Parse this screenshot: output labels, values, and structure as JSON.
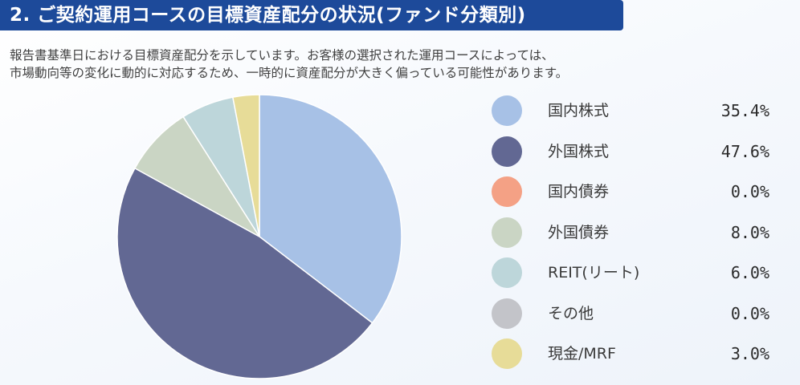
{
  "header": {
    "title": "2. ご契約運用コースの目標資産配分の状況(ファンド分類別)"
  },
  "description": {
    "line1": "報告書基準日における目標資産配分を示しています。お客様の選択された運用コースによっては、",
    "line2": "市場動向等の変化に動的に対応するため、一時的に資産配分が大きく偏っている可能性があります。"
  },
  "chart_data": {
    "type": "pie",
    "title": "",
    "categories": [
      "国内株式",
      "外国株式",
      "国内債券",
      "外国債券",
      "REIT(リート)",
      "その他",
      "現金/MRF"
    ],
    "values": [
      35.4,
      47.6,
      0.0,
      8.0,
      6.0,
      0.0,
      3.0
    ],
    "value_labels": [
      "35.4%",
      "47.6%",
      "0.0%",
      "8.0%",
      "6.0%",
      "0.0%",
      "3.0%"
    ],
    "colors": [
      "#a7c1e6",
      "#626893",
      "#f4a185",
      "#cad5c4",
      "#bdd6da",
      "#c3c4c9",
      "#e7dc98"
    ],
    "legend": "right"
  }
}
